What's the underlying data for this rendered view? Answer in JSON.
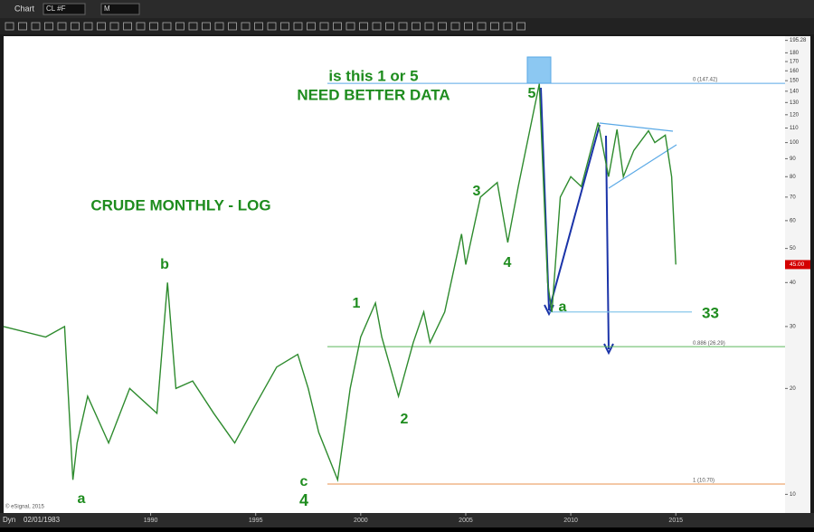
{
  "toolbar": {
    "title": "Chart",
    "symbol": "CL #F",
    "interval": "M"
  },
  "status": {
    "date": "02/01/1983",
    "mode": "Dyn",
    "copyright": "© eSignal, 2015"
  },
  "chart_data": {
    "type": "line",
    "log_scale": true,
    "color": "#2e8b2e",
    "x": [
      1983.0,
      1985,
      1985.9,
      1986.3,
      1986.5,
      1987,
      1988,
      1989,
      1990.3,
      1990.8,
      1991.2,
      1992,
      1993,
      1994,
      1995,
      1996,
      1997,
      1997.5,
      1998,
      1998.9,
      1999.5,
      2000,
      2000.7,
      2001,
      2001.8,
      2002.5,
      2003,
      2003.3,
      2004,
      2004.8,
      2005,
      2005.7,
      2006.5,
      2007,
      2007.5,
      2008.5,
      2008.9,
      2009.1,
      2009.5,
      2010,
      2010.5,
      2011.3,
      2011.8,
      2012.2,
      2012.5,
      2013,
      2013.7,
      2014,
      2014.5,
      2014.8,
      2015
    ],
    "values": [
      30,
      28,
      30,
      11,
      14,
      19,
      14,
      20,
      17,
      40,
      20,
      21,
      17,
      14,
      18,
      23,
      25,
      20,
      15,
      11,
      20,
      28,
      35,
      28,
      19,
      27,
      33,
      27,
      33,
      55,
      45,
      70,
      77,
      52,
      75,
      147,
      40,
      33,
      70,
      80,
      75,
      114,
      80,
      109,
      80,
      95,
      108,
      100,
      105,
      80,
      45
    ],
    "xlim": [
      1983,
      2020.2
    ],
    "ylim": [
      8.85,
      200.7
    ],
    "xticks": [
      1990,
      1995,
      2000,
      2005,
      2010,
      2015
    ],
    "yticks": [
      {
        "value": 195.28,
        "label": "195.28"
      },
      180,
      170,
      160,
      150,
      140,
      130,
      120,
      110,
      100,
      90,
      80,
      70,
      60,
      50,
      40,
      30,
      20,
      10
    ],
    "last_price": {
      "value": 45,
      "label": "45.00"
    },
    "fib_levels": [
      {
        "value": 147.42,
        "label": "0 (147.42)",
        "color": "#5aa9e6"
      },
      {
        "value": 26.29,
        "label": "0.886 (26.29)",
        "color": "#5cb85c"
      },
      {
        "value": 10.7,
        "label": "1 (10.70)",
        "color": "#e8914d"
      }
    ],
    "target_line": {
      "value": 33,
      "color": "#7cc0e8"
    },
    "annotations": [
      "is this 1 or 5",
      "NEED BETTER DATA",
      "CRUDE MONTHLY - LOG",
      "a",
      "b",
      "c",
      "4",
      "1",
      "2",
      "3",
      "4",
      "5",
      "a"
    ]
  }
}
